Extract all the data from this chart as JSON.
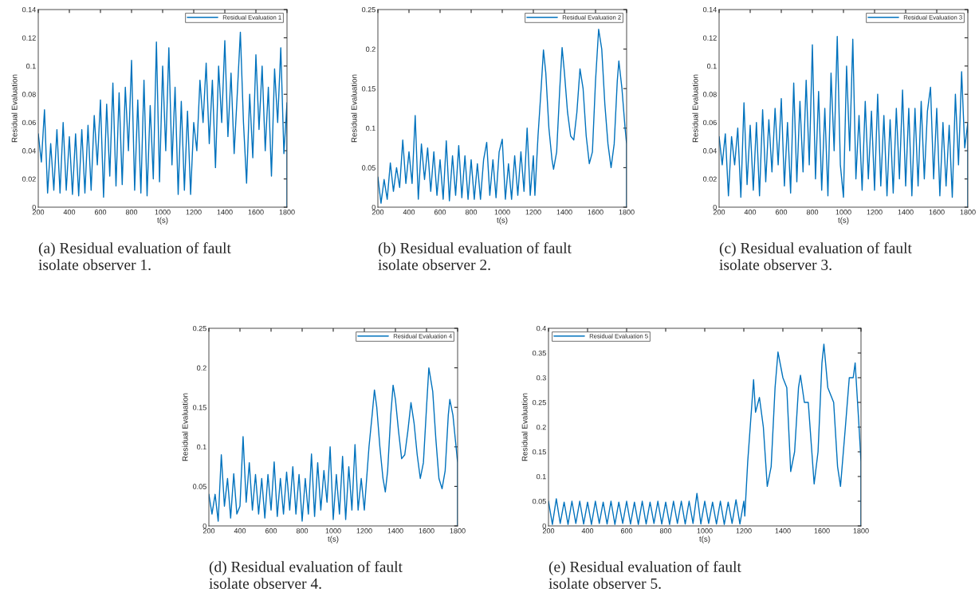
{
  "chart_data": [
    {
      "type": "line",
      "xlabel": "t(s)",
      "ylabel": "Residual Evaluation",
      "xlim": [
        200,
        1800
      ],
      "ylim": [
        0,
        0.14
      ],
      "xticks": [
        200,
        400,
        600,
        800,
        1000,
        1200,
        1400,
        1600,
        1800
      ],
      "yticks": [
        0,
        0.02,
        0.04,
        0.06,
        0.08,
        0.1,
        0.12,
        0.14
      ],
      "legend": "top right",
      "annotations": [
        "(a) Residual evaluation of fault\nisolate observer 1."
      ],
      "x": [
        200,
        220,
        240,
        260,
        280,
        300,
        320,
        340,
        360,
        380,
        400,
        420,
        440,
        460,
        480,
        500,
        520,
        540,
        560,
        580,
        600,
        620,
        640,
        660,
        680,
        700,
        720,
        740,
        760,
        780,
        800,
        820,
        840,
        860,
        880,
        900,
        920,
        940,
        960,
        980,
        1000,
        1020,
        1040,
        1060,
        1080,
        1100,
        1120,
        1140,
        1160,
        1180,
        1200,
        1220,
        1240,
        1260,
        1280,
        1300,
        1320,
        1340,
        1360,
        1380,
        1400,
        1420,
        1440,
        1460,
        1480,
        1500,
        1520,
        1540,
        1560,
        1580,
        1600,
        1620,
        1640,
        1660,
        1680,
        1700,
        1720,
        1740,
        1760,
        1780,
        1800,
        1800
      ],
      "series": [
        {
          "name": "Residual Evaluation 1",
          "color": "#0072bd",
          "values": [
            0.052,
            0.032,
            0.069,
            0.01,
            0.045,
            0.012,
            0.055,
            0.01,
            0.06,
            0.012,
            0.05,
            0.009,
            0.052,
            0.008,
            0.055,
            0.01,
            0.058,
            0.012,
            0.065,
            0.03,
            0.076,
            0.007,
            0.073,
            0.022,
            0.088,
            0.015,
            0.081,
            0.016,
            0.085,
            0.04,
            0.104,
            0.012,
            0.076,
            0.01,
            0.09,
            0.008,
            0.072,
            0.02,
            0.117,
            0.018,
            0.1,
            0.04,
            0.113,
            0.03,
            0.085,
            0.009,
            0.075,
            0.012,
            0.068,
            0.009,
            0.06,
            0.04,
            0.09,
            0.06,
            0.102,
            0.045,
            0.09,
            0.028,
            0.1,
            0.06,
            0.118,
            0.05,
            0.095,
            0.038,
            0.08,
            0.124,
            0.06,
            0.017,
            0.08,
            0.035,
            0.108,
            0.055,
            0.1,
            0.04,
            0.085,
            0.022,
            0.098,
            0.06,
            0.113,
            0.038,
            0.074,
            0
          ]
        }
      ]
    },
    {
      "type": "line",
      "xlabel": "t(s)",
      "ylabel": "Residual Evaluation",
      "xlim": [
        200,
        1800
      ],
      "ylim": [
        0,
        0.25
      ],
      "xticks": [
        200,
        400,
        600,
        800,
        1000,
        1200,
        1400,
        1600,
        1800
      ],
      "yticks": [
        0,
        0.05,
        0.1,
        0.15,
        0.2,
        0.25
      ],
      "legend": "top right",
      "annotations": [
        "(b) Residual evaluation of fault\nisolate observer 2."
      ],
      "x": [
        200,
        220,
        240,
        260,
        280,
        300,
        320,
        340,
        360,
        380,
        400,
        420,
        440,
        460,
        480,
        500,
        520,
        540,
        560,
        580,
        600,
        620,
        640,
        660,
        680,
        700,
        720,
        740,
        760,
        780,
        800,
        820,
        840,
        860,
        880,
        900,
        920,
        940,
        960,
        980,
        1000,
        1020,
        1040,
        1060,
        1080,
        1100,
        1120,
        1140,
        1160,
        1180,
        1200,
        1210,
        1230,
        1250,
        1265,
        1280,
        1300,
        1320,
        1330,
        1350,
        1370,
        1385,
        1400,
        1420,
        1440,
        1460,
        1480,
        1500,
        1520,
        1540,
        1560,
        1580,
        1600,
        1620,
        1640,
        1660,
        1680,
        1700,
        1720,
        1740,
        1750,
        1770,
        1790,
        1800,
        1800
      ],
      "series": [
        {
          "name": "Residual Evaluation 2",
          "color": "#0072bd",
          "values": [
            0.038,
            0.005,
            0.035,
            0.01,
            0.056,
            0.02,
            0.05,
            0.025,
            0.085,
            0.03,
            0.07,
            0.03,
            0.116,
            0.01,
            0.08,
            0.035,
            0.075,
            0.02,
            0.07,
            0.015,
            0.06,
            0.01,
            0.084,
            0.008,
            0.065,
            0.015,
            0.078,
            0.012,
            0.065,
            0.01,
            0.06,
            0.01,
            0.055,
            0.01,
            0.06,
            0.082,
            0.015,
            0.06,
            0.012,
            0.07,
            0.086,
            0.01,
            0.055,
            0.01,
            0.065,
            0.015,
            0.07,
            0.02,
            0.1,
            0.015,
            0.065,
            0.015,
            0.09,
            0.15,
            0.199,
            0.17,
            0.1,
            0.06,
            0.048,
            0.07,
            0.15,
            0.202,
            0.17,
            0.12,
            0.09,
            0.085,
            0.12,
            0.175,
            0.15,
            0.09,
            0.055,
            0.07,
            0.16,
            0.225,
            0.2,
            0.13,
            0.08,
            0.05,
            0.08,
            0.16,
            0.185,
            0.15,
            0.1,
            0.08,
            0
          ]
        }
      ]
    },
    {
      "type": "line",
      "xlabel": "t(s)",
      "ylabel": "Residual Evaluation",
      "xlim": [
        200,
        1800
      ],
      "ylim": [
        0,
        0.14
      ],
      "xticks": [
        200,
        400,
        600,
        800,
        1000,
        1200,
        1400,
        1600,
        1800
      ],
      "yticks": [
        0,
        0.02,
        0.04,
        0.06,
        0.08,
        0.1,
        0.12,
        0.14
      ],
      "legend": "top right",
      "annotations": [
        "(c) Residual evaluation of fault\nisolate observer 3."
      ],
      "x": [
        200,
        220,
        240,
        260,
        280,
        300,
        320,
        340,
        360,
        380,
        400,
        420,
        440,
        460,
        480,
        500,
        520,
        540,
        560,
        580,
        600,
        620,
        640,
        660,
        680,
        700,
        720,
        740,
        760,
        780,
        800,
        820,
        840,
        860,
        880,
        900,
        920,
        940,
        960,
        980,
        1000,
        1020,
        1040,
        1060,
        1080,
        1100,
        1120,
        1140,
        1160,
        1180,
        1200,
        1220,
        1240,
        1260,
        1280,
        1300,
        1320,
        1340,
        1360,
        1380,
        1400,
        1420,
        1440,
        1460,
        1480,
        1500,
        1520,
        1540,
        1560,
        1580,
        1600,
        1620,
        1640,
        1660,
        1680,
        1700,
        1720,
        1740,
        1760,
        1780,
        1800,
        1800
      ],
      "series": [
        {
          "name": "Residual Evaluation 3",
          "color": "#0072bd",
          "values": [
            0.05,
            0.03,
            0.052,
            0.008,
            0.05,
            0.03,
            0.056,
            0.007,
            0.074,
            0.016,
            0.058,
            0.012,
            0.06,
            0.008,
            0.069,
            0.018,
            0.062,
            0.025,
            0.07,
            0.03,
            0.077,
            0.015,
            0.06,
            0.01,
            0.088,
            0.018,
            0.075,
            0.025,
            0.09,
            0.03,
            0.115,
            0.02,
            0.082,
            0.012,
            0.07,
            0.008,
            0.095,
            0.04,
            0.121,
            0.03,
            0.007,
            0.1,
            0.04,
            0.119,
            0.02,
            0.065,
            0.012,
            0.075,
            0.02,
            0.068,
            0.012,
            0.08,
            0.015,
            0.065,
            0.008,
            0.062,
            0.01,
            0.07,
            0.02,
            0.083,
            0.015,
            0.07,
            0.008,
            0.07,
            0.015,
            0.075,
            0.02,
            0.068,
            0.085,
            0.02,
            0.07,
            0.008,
            0.06,
            0.015,
            0.058,
            0.007,
            0.08,
            0.03,
            0.096,
            0.042,
            0.06,
            0
          ]
        }
      ]
    },
    {
      "type": "line",
      "xlabel": "t(s)",
      "ylabel": "Residual Evaluation",
      "xlim": [
        200,
        1800
      ],
      "ylim": [
        0,
        0.25
      ],
      "xticks": [
        200,
        400,
        600,
        800,
        1000,
        1200,
        1400,
        1600,
        1800
      ],
      "yticks": [
        0,
        0.05,
        0.1,
        0.15,
        0.2,
        0.25
      ],
      "legend": "top right",
      "annotations": [
        "(d) Residual evaluation of fault\nisolate observer 4."
      ],
      "x": [
        200,
        220,
        240,
        260,
        280,
        300,
        320,
        340,
        360,
        380,
        400,
        420,
        440,
        460,
        480,
        500,
        520,
        540,
        560,
        580,
        600,
        620,
        640,
        660,
        680,
        700,
        720,
        740,
        760,
        780,
        800,
        820,
        840,
        860,
        880,
        900,
        920,
        940,
        960,
        980,
        1000,
        1020,
        1040,
        1060,
        1080,
        1100,
        1120,
        1140,
        1160,
        1180,
        1200,
        1230,
        1250,
        1265,
        1280,
        1300,
        1320,
        1335,
        1350,
        1370,
        1385,
        1400,
        1420,
        1440,
        1460,
        1480,
        1500,
        1520,
        1540,
        1560,
        1580,
        1600,
        1615,
        1640,
        1660,
        1680,
        1700,
        1720,
        1740,
        1750,
        1770,
        1790,
        1800,
        1800
      ],
      "series": [
        {
          "name": "Residual Evaluation 4",
          "color": "#0072bd",
          "values": [
            0.04,
            0.015,
            0.04,
            0.006,
            0.09,
            0.025,
            0.06,
            0.01,
            0.066,
            0.015,
            0.025,
            0.113,
            0.03,
            0.08,
            0.02,
            0.065,
            0.015,
            0.06,
            0.01,
            0.065,
            0.02,
            0.081,
            0.012,
            0.06,
            0.015,
            0.068,
            0.02,
            0.075,
            0.015,
            0.065,
            0.006,
            0.06,
            0.015,
            0.091,
            0.012,
            0.08,
            0.02,
            0.07,
            0.03,
            0.1,
            0.008,
            0.065,
            0.015,
            0.088,
            0.008,
            0.075,
            0.02,
            0.103,
            0.02,
            0.06,
            0.02,
            0.1,
            0.14,
            0.172,
            0.15,
            0.1,
            0.06,
            0.043,
            0.07,
            0.14,
            0.178,
            0.16,
            0.12,
            0.085,
            0.09,
            0.12,
            0.156,
            0.13,
            0.09,
            0.06,
            0.08,
            0.15,
            0.2,
            0.17,
            0.11,
            0.06,
            0.047,
            0.07,
            0.14,
            0.16,
            0.14,
            0.1,
            0.08,
            0
          ]
        }
      ]
    },
    {
      "type": "line",
      "xlabel": "t(s)",
      "ylabel": "Residual Evaluation",
      "xlim": [
        200,
        1800
      ],
      "ylim": [
        0,
        0.4
      ],
      "xticks": [
        200,
        400,
        600,
        800,
        1000,
        1200,
        1400,
        1600,
        1800
      ],
      "yticks": [
        0,
        0.05,
        0.1,
        0.15,
        0.2,
        0.25,
        0.3,
        0.35,
        0.4
      ],
      "legend": "top left",
      "annotations": [
        "(e) Residual evaluation of fault\nisolate observer 5."
      ],
      "x": [
        200,
        220,
        240,
        260,
        280,
        300,
        320,
        340,
        360,
        380,
        400,
        420,
        440,
        460,
        480,
        500,
        520,
        540,
        560,
        580,
        600,
        620,
        640,
        660,
        680,
        700,
        720,
        740,
        760,
        780,
        800,
        820,
        840,
        860,
        880,
        900,
        920,
        940,
        960,
        980,
        1000,
        1020,
        1040,
        1060,
        1080,
        1100,
        1120,
        1140,
        1160,
        1180,
        1200,
        1205,
        1220,
        1240,
        1250,
        1260,
        1280,
        1300,
        1320,
        1340,
        1360,
        1375,
        1400,
        1420,
        1440,
        1460,
        1480,
        1490,
        1510,
        1530,
        1560,
        1580,
        1600,
        1610,
        1630,
        1660,
        1680,
        1695,
        1720,
        1740,
        1760,
        1770,
        1790,
        1800,
        1800
      ],
      "series": [
        {
          "name": "Residual Evaluation 5",
          "color": "#0072bd",
          "values": [
            0.05,
            0.003,
            0.055,
            0.005,
            0.048,
            0.003,
            0.05,
            0.005,
            0.05,
            0.004,
            0.048,
            0.003,
            0.05,
            0.005,
            0.048,
            0.004,
            0.05,
            0.003,
            0.048,
            0.005,
            0.05,
            0.004,
            0.048,
            0.003,
            0.05,
            0.004,
            0.048,
            0.005,
            0.05,
            0.004,
            0.048,
            0.003,
            0.05,
            0.005,
            0.05,
            0.004,
            0.05,
            0.005,
            0.066,
            0.004,
            0.05,
            0.005,
            0.048,
            0.004,
            0.05,
            0.003,
            0.048,
            0.005,
            0.053,
            0.004,
            0.05,
            0.02,
            0.13,
            0.24,
            0.296,
            0.23,
            0.26,
            0.2,
            0.08,
            0.12,
            0.28,
            0.352,
            0.3,
            0.28,
            0.11,
            0.15,
            0.28,
            0.305,
            0.25,
            0.25,
            0.085,
            0.15,
            0.33,
            0.368,
            0.28,
            0.25,
            0.12,
            0.08,
            0.2,
            0.3,
            0.3,
            0.33,
            0.2,
            0.13,
            0
          ]
        }
      ]
    }
  ]
}
